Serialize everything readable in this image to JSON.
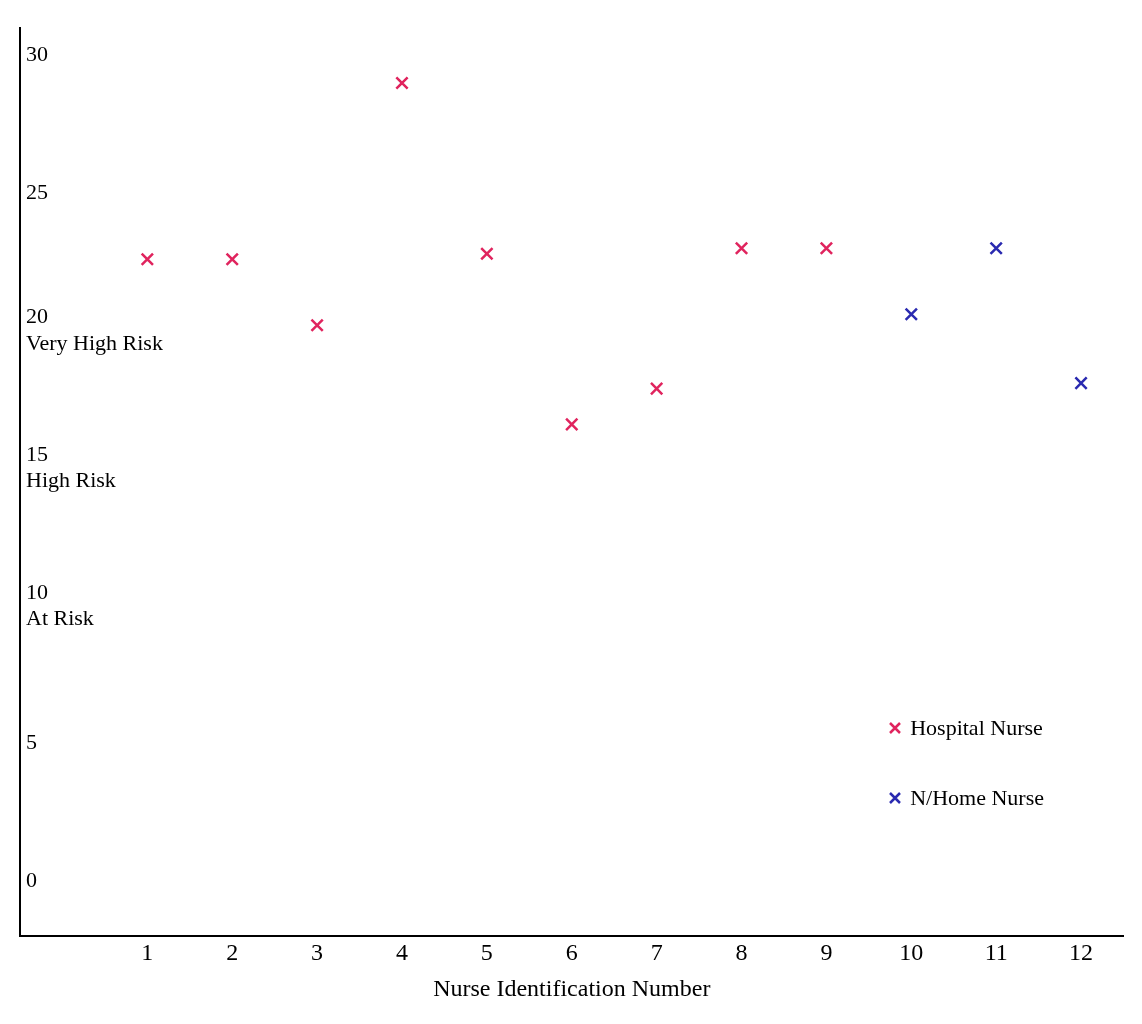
{
  "chart_data": {
    "type": "scatter",
    "xlabel": "Nurse Identification Number",
    "series": [
      {
        "name": "Hospital Nurse",
        "color": "#e0245e",
        "x": [
          1,
          2,
          3,
          4,
          5,
          6,
          7,
          8,
          9
        ],
        "values": [
          22.6,
          22.6,
          20.2,
          29,
          22.8,
          16.6,
          17.9,
          23,
          23
        ]
      },
      {
        "name": "N/Home Nurse",
        "color": "#2a2ab0",
        "x": [
          10,
          11,
          12
        ],
        "values": [
          20.6,
          23,
          18.1
        ]
      }
    ],
    "xlim": [
      -0.5,
      12.5
    ],
    "xticks": [
      1,
      2,
      3,
      4,
      5,
      6,
      7,
      8,
      9,
      10,
      11,
      12
    ],
    "ylim": [
      -2,
      31
    ],
    "yticks": [
      0,
      5,
      {
        "value": 10,
        "label": "10\nAt Risk"
      },
      {
        "value": 15,
        "label": "15\nHigh Risk"
      },
      {
        "value": 20,
        "label": "20\nVery High Risk"
      },
      25,
      30
    ],
    "grid": false,
    "legend": "bottom right",
    "marker": "cross"
  }
}
